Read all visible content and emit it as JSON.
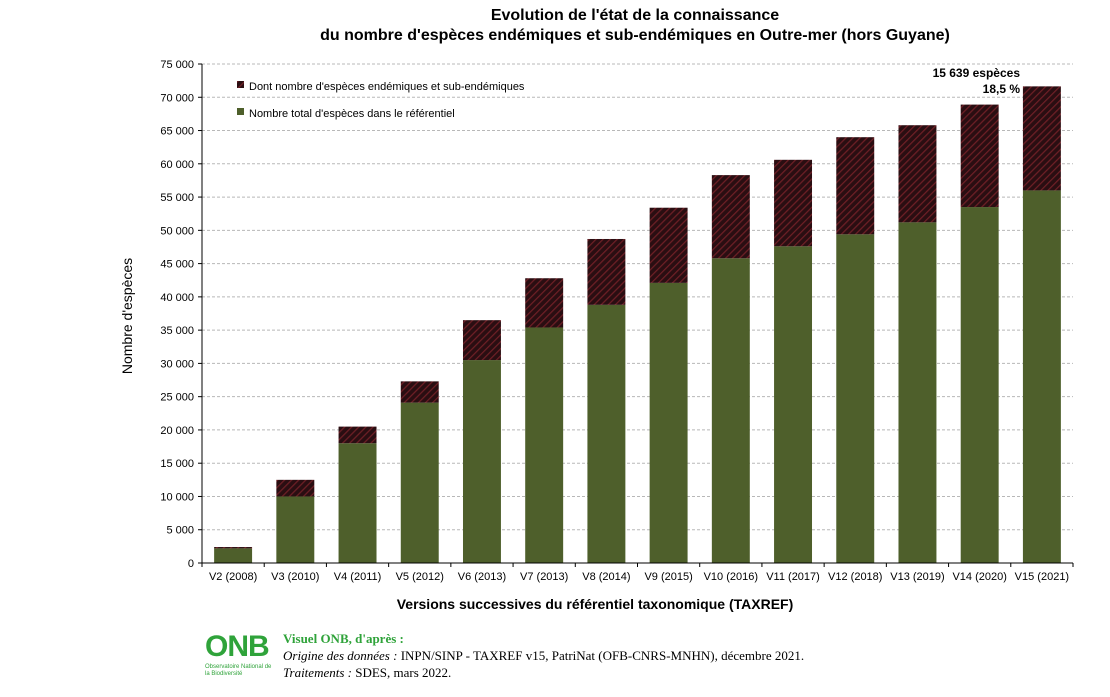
{
  "title_line1": "Evolution de l'état de la connaissance",
  "title_line2": "du nombre d'espèces endémiques et sub-endémiques en Outre-mer (hors Guyane)",
  "colors": {
    "total": "#4e5f2b",
    "endemic_base": "#2a0e12",
    "endemic_stripe": "#6e1f26",
    "grid": "#b8b8b8"
  },
  "chart_data": {
    "type": "bar",
    "stacked": true,
    "title": "Evolution de l'état de la connaissance du nombre d'espèces endémiques et sub-endémiques en Outre-mer (hors Guyane)",
    "xlabel": "Versions successives du référentiel taxonomique (TAXREF)",
    "ylabel": "Nombre d'espèces",
    "ylim": [
      0,
      75000
    ],
    "yticks": [
      0,
      5000,
      10000,
      15000,
      20000,
      25000,
      30000,
      35000,
      40000,
      45000,
      50000,
      55000,
      60000,
      65000,
      70000,
      75000
    ],
    "ytick_labels": [
      "0",
      "5 000",
      "10 000",
      "15 000",
      "20 000",
      "25 000",
      "30 000",
      "35 000",
      "40 000",
      "45 000",
      "50 000",
      "55 000",
      "60 000",
      "65 000",
      "70 000",
      "75 000"
    ],
    "grid": true,
    "legend_position": "top-left",
    "categories": [
      "V2 (2008)",
      "V3 (2010)",
      "V4 (2011)",
      "V5 (2012)",
      "V6 (2013)",
      "V7 (2013)",
      "V8 (2014)",
      "V9 (2015)",
      "V10 (2016)",
      "V11 (2017)",
      "V12 (2018)",
      "V13 (2019)",
      "V14 (2020)",
      "V15 (2021)"
    ],
    "series": [
      {
        "name": "Nombre total d'espèces dans le référentiel",
        "values": [
          2200,
          10000,
          18000,
          24100,
          30500,
          35400,
          38800,
          42100,
          45800,
          47600,
          49400,
          51200,
          53500,
          56000
        ]
      },
      {
        "name": "Dont nombre d'espèces endémiques et sub-endémiques",
        "values": [
          200,
          2500,
          2500,
          3200,
          6000,
          7400,
          9900,
          11300,
          12500,
          13000,
          14600,
          14600,
          15400,
          15639
        ]
      }
    ],
    "annotations": [
      "15 639 espèces",
      "18,5 %"
    ]
  },
  "footer": {
    "logo_text": "ONB",
    "logo_sub": "Observatoire National de la Biodiversité",
    "head": "Visuel ONB, d'après :",
    "origin_label": "Origine des données :",
    "origin_text": " INPN/SINP - TAXREF v15, PatriNat (OFB-CNRS-MNHN), décembre 2021.",
    "treat_label": "Traitements :",
    "treat_text": " SDES, mars 2022."
  }
}
